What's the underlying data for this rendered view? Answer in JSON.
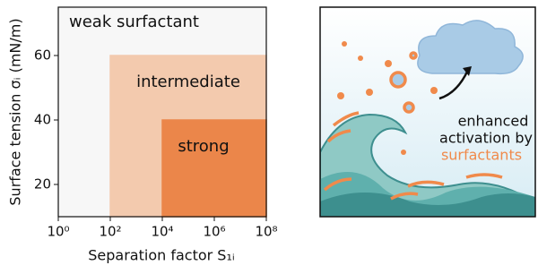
{
  "chart_data": {
    "type": "region",
    "x_label": "Separation factor S₁ᵢ",
    "y_label": "Surface tension σᵢ (mN/m)",
    "log_x": true,
    "xlim": [
      1,
      100000000
    ],
    "ylim": [
      10,
      75
    ],
    "xticks": [
      {
        "value": 1,
        "label": "10⁰"
      },
      {
        "value": 100,
        "label": "10²"
      },
      {
        "value": 10000,
        "label": "10⁴"
      },
      {
        "value": 1000000,
        "label": "10⁶"
      },
      {
        "value": 100000000,
        "label": "10⁸"
      }
    ],
    "yticks": [
      20,
      40,
      60
    ],
    "regions": [
      {
        "label": "weak surfactant",
        "x": [
          1,
          100000000
        ],
        "y": [
          10,
          75
        ],
        "color": "#ffffff"
      },
      {
        "label": "intermediate",
        "x": [
          100,
          100000000
        ],
        "y": [
          10,
          60
        ],
        "color": "#fbd0b3"
      },
      {
        "label": "strong",
        "x": [
          10000,
          100000000
        ],
        "y": [
          10,
          40
        ],
        "color": "#f28a4c"
      }
    ]
  },
  "illustration": {
    "lines": [
      "enhanced",
      "activation by"
    ],
    "highlight": "surfactants"
  }
}
